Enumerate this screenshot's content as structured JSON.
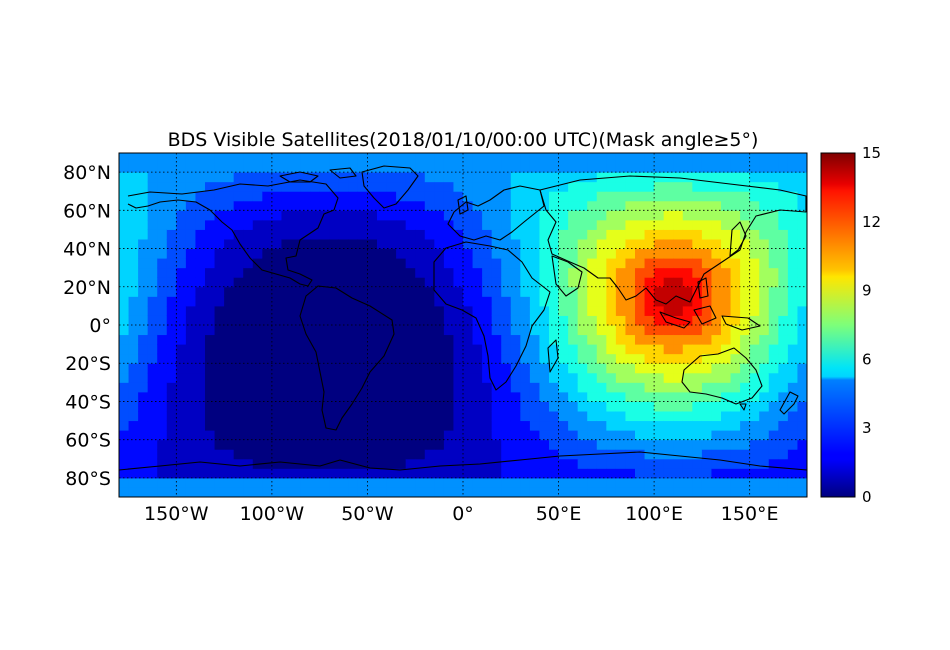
{
  "chart_data": {
    "type": "heatmap",
    "title": "BDS Visible Satellites(2018/01/10/00:00 UTC)(Mask angle≥5°)",
    "xlabel": "",
    "ylabel": "",
    "xlim": [
      -180,
      180
    ],
    "ylim": [
      -90,
      90
    ],
    "x_ticks": [
      {
        "value": -150,
        "label": "150°W"
      },
      {
        "value": -100,
        "label": "100°W"
      },
      {
        "value": -50,
        "label": "50°W"
      },
      {
        "value": 0,
        "label": "0°"
      },
      {
        "value": 50,
        "label": "50°E"
      },
      {
        "value": 100,
        "label": "100°E"
      },
      {
        "value": 150,
        "label": "150°E"
      }
    ],
    "y_ticks": [
      {
        "value": 80,
        "label": "80°N"
      },
      {
        "value": 60,
        "label": "60°N"
      },
      {
        "value": 40,
        "label": "40°N"
      },
      {
        "value": 20,
        "label": "20°N"
      },
      {
        "value": 0,
        "label": "0°"
      },
      {
        "value": -20,
        "label": "20°S"
      },
      {
        "value": -40,
        "label": "40°S"
      },
      {
        "value": -60,
        "label": "60°S"
      },
      {
        "value": -80,
        "label": "80°S"
      }
    ],
    "grid": true,
    "colormap": "jet",
    "colorbar": {
      "min": 0,
      "max": 15,
      "ticks": [
        {
          "value": 0,
          "label": "0"
        },
        {
          "value": 3,
          "label": "3"
        },
        {
          "value": 6,
          "label": "6"
        },
        {
          "value": 9,
          "label": "9"
        },
        {
          "value": 12,
          "label": "12"
        },
        {
          "value": 15,
          "label": "15"
        }
      ],
      "placement": "right"
    },
    "field": {
      "lon_step": 5,
      "lat_step": 5,
      "hotspot": {
        "lon": 110,
        "lat": 15,
        "peak": 14.8
      },
      "coldspot": {
        "lon": -35,
        "lat": -10,
        "trough": 0.2
      },
      "polar_value": 4.2
    }
  }
}
